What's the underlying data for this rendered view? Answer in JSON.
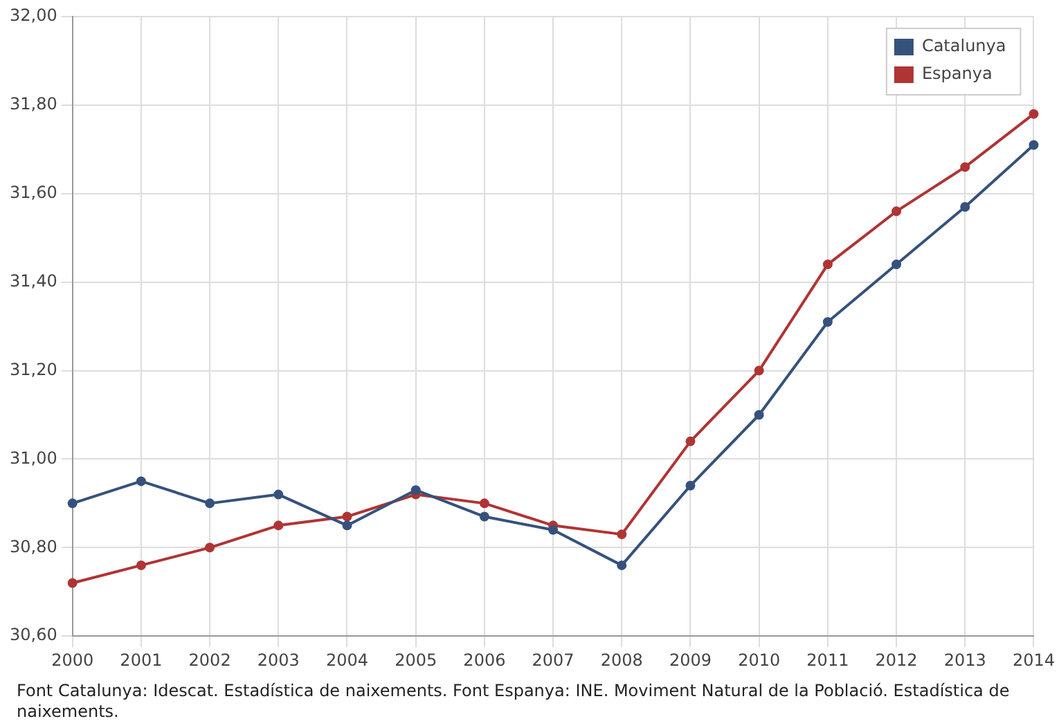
{
  "chart_data": {
    "type": "line",
    "categories": [
      "2000",
      "2001",
      "2002",
      "2003",
      "2004",
      "2005",
      "2006",
      "2007",
      "2008",
      "2009",
      "2010",
      "2011",
      "2012",
      "2013",
      "2014"
    ],
    "series": [
      {
        "name": "Catalunya",
        "color": "#35527c",
        "values": [
          30.9,
          30.95,
          30.9,
          30.92,
          30.85,
          30.93,
          30.87,
          30.84,
          30.76,
          30.94,
          31.1,
          31.31,
          31.44,
          31.57,
          31.71
        ]
      },
      {
        "name": "Espanya",
        "color": "#b03434",
        "values": [
          30.72,
          30.76,
          30.8,
          30.85,
          30.87,
          30.92,
          30.9,
          30.85,
          30.83,
          31.04,
          31.2,
          31.44,
          31.56,
          31.66,
          31.78
        ]
      }
    ],
    "ylim": [
      30.6,
      32.0
    ],
    "yticks": [
      {
        "value": 30.6,
        "label": "30,60"
      },
      {
        "value": 30.8,
        "label": "30,80"
      },
      {
        "value": 31.0,
        "label": "31,00"
      },
      {
        "value": 31.2,
        "label": "31,20"
      },
      {
        "value": 31.4,
        "label": "31,40"
      },
      {
        "value": 31.6,
        "label": "31,60"
      },
      {
        "value": 31.8,
        "label": "31,80"
      },
      {
        "value": 32.0,
        "label": "32,00"
      }
    ],
    "grid": true,
    "legend": "top right",
    "marker": "circle",
    "annotations": [
      "Font Catalunya: Idescat. Estadística de naixements. Font Espanya: INE. Moviment Natural de la Població. Estadística de naixements."
    ]
  }
}
